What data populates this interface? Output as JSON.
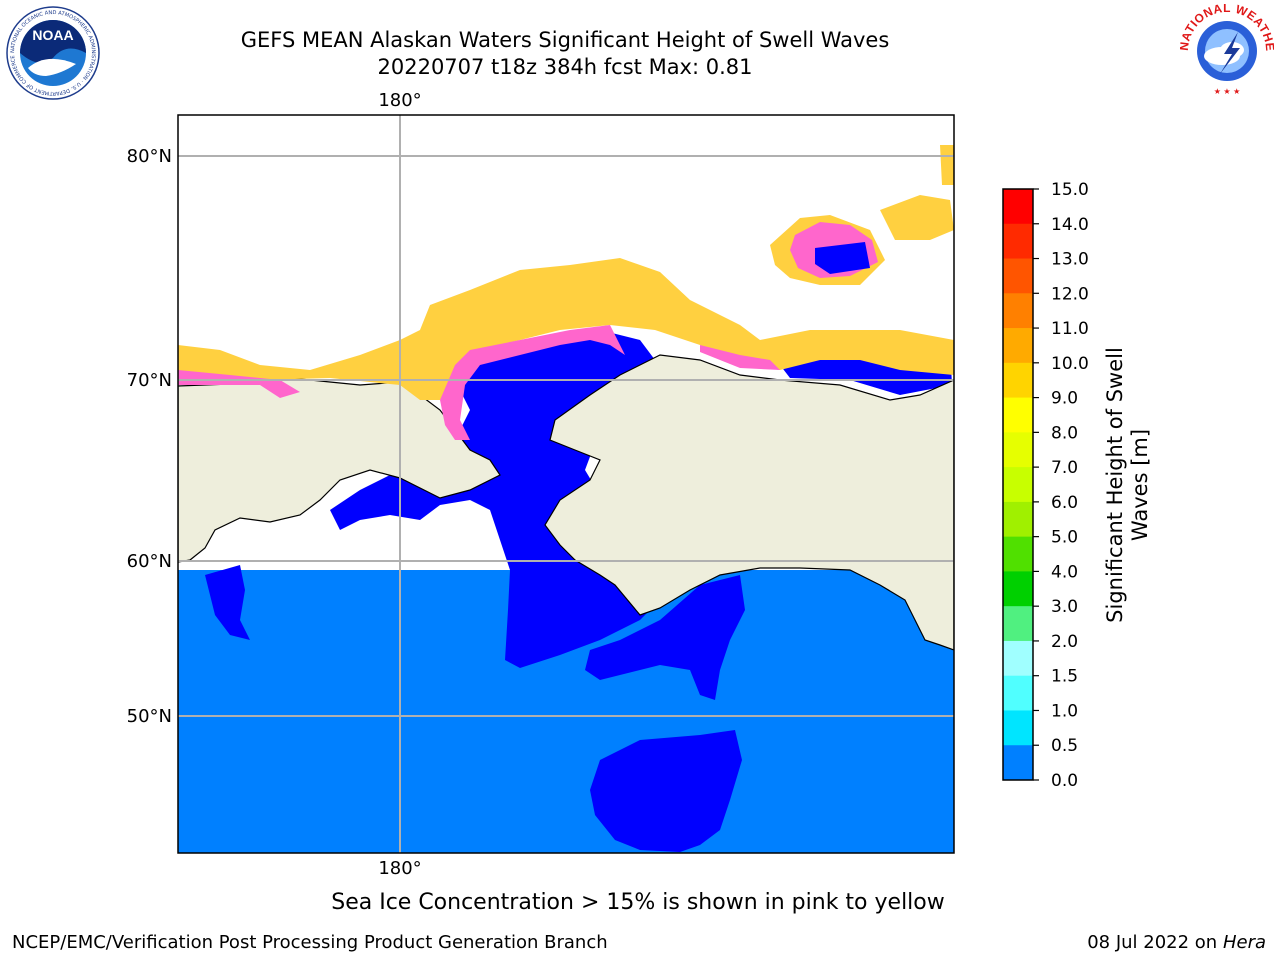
{
  "title": {
    "line1": "GEFS MEAN Alaskan Waters Significant Height of Swell Waves",
    "line2": "20220707 t18z 384h fcst   Max: 0.81"
  },
  "map": {
    "lat_labels": [
      "80°N",
      "70°N",
      "60°N",
      "50°N"
    ],
    "lon_label_top": "180°",
    "lon_label_bottom": "180°",
    "colors": {
      "land": "#eeeedc",
      "ocean_0_5": "#0000ff",
      "ocean_0_5_1_0": "#0080ff",
      "ice_pink": "#ff66cc",
      "ice_orange": "#ffa040",
      "ice_yellow": "#ffd040",
      "grid": "#b0b0b0"
    }
  },
  "colorbar": {
    "label_line1": "Significant Height of Swell",
    "label_line2": "Waves [m]",
    "ticks": [
      "15.0",
      "14.0",
      "13.0",
      "12.0",
      "11.0",
      "10.0",
      "9.0",
      "8.0",
      "7.0",
      "6.0",
      "5.0",
      "4.0",
      "3.0",
      "2.0",
      "1.5",
      "1.0",
      "0.5",
      "0.0"
    ],
    "colors": [
      "#ff0000",
      "#ff2a00",
      "#ff5500",
      "#ff8000",
      "#ffaa00",
      "#ffd400",
      "#ffff00",
      "#e6ff00",
      "#c8ff00",
      "#a0f000",
      "#50e000",
      "#00d000",
      "#50f080",
      "#a0ffff",
      "#50ffff",
      "#00e5ff",
      "#0080ff",
      "#0000ff"
    ]
  },
  "note": "Sea Ice Concentration > 15% is shown in pink to yellow",
  "footer": {
    "left": "NCEP/EMC/Verification Post Processing Product Generation Branch",
    "right_date": "08 Jul 2022 on",
    "right_machine": "Hera"
  },
  "logos": {
    "noaa": "NOAA",
    "noaa_ring": "NATIONAL OCEANIC AND ATMOSPHERIC ADMINISTRATION · U.S. DEPARTMENT OF COMMERCE",
    "nws_ring": "NATIONAL WEATHER SERVICE"
  }
}
